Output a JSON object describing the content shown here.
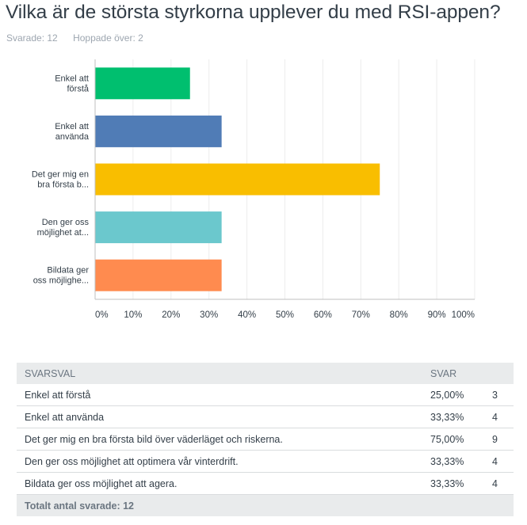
{
  "question": {
    "title": "Vilka är de största styrkorna upplever du med RSI-appen?",
    "answered_label": "Svarade: 12",
    "skipped_label": "Hoppade över: 2"
  },
  "chart_data": {
    "type": "bar",
    "orientation": "horizontal",
    "categories": [
      [
        "Enkel att",
        "förstå"
      ],
      [
        "Enkel att",
        "använda"
      ],
      [
        "Det ger mig en",
        "bra första b..."
      ],
      [
        "Den ger oss",
        "möjlighet at..."
      ],
      [
        "Bildata ger",
        "oss möjlighe..."
      ]
    ],
    "values": [
      25,
      33.33,
      75,
      33.33,
      33.33
    ],
    "colors": [
      "#00bf6f",
      "#507cb6",
      "#f9be00",
      "#6bc8cd",
      "#ff8b4f"
    ],
    "xlim": [
      0,
      100
    ],
    "xticks": [
      "0%",
      "10%",
      "20%",
      "30%",
      "40%",
      "50%",
      "60%",
      "70%",
      "80%",
      "90%",
      "100%"
    ],
    "grid": true
  },
  "table": {
    "headers": [
      "SVARSVAL",
      "SVAR",
      ""
    ],
    "rows": [
      {
        "choice": "Enkel att förstå",
        "percent": "25,00%",
        "count": "3"
      },
      {
        "choice": "Enkel att använda",
        "percent": "33,33%",
        "count": "4"
      },
      {
        "choice": "Det ger mig en bra första bild över väderläget och riskerna.",
        "percent": "75,00%",
        "count": "9"
      },
      {
        "choice": "Den ger oss möjlighet att optimera vår vinterdrift.",
        "percent": "33,33%",
        "count": "4"
      },
      {
        "choice": "Bildata ger oss möjlighet att agera.",
        "percent": "33,33%",
        "count": "4"
      }
    ],
    "total_label": "Totalt antal svarade: 12"
  }
}
